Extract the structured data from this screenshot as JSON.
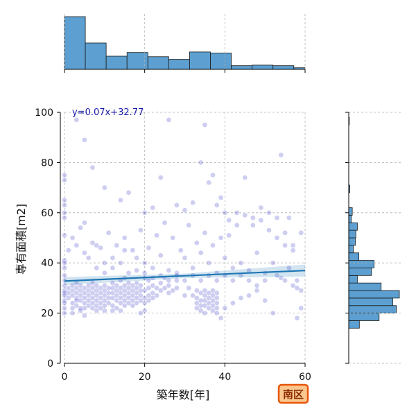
{
  "chart_data": {
    "type": "scatter",
    "xlabel": "築年数[年]",
    "ylabel": "専有面積[m2]",
    "xlim": [
      0,
      60
    ],
    "ylim": [
      0,
      100
    ],
    "x_ticks": [
      0,
      20,
      40,
      60
    ],
    "y_ticks": [
      0,
      20,
      40,
      60,
      80,
      100
    ],
    "grid": true,
    "regression": {
      "label": "y=0.07x+32.77",
      "slope": 0.07,
      "intercept": 32.77
    },
    "badge": "南区",
    "marginal_x_hist": {
      "bins": [
        0,
        5.2,
        10.4,
        15.6,
        20.8,
        26,
        31.2,
        36.4,
        41.6,
        46.8,
        52,
        57.2,
        60
      ],
      "heights": [
        1.0,
        0.5,
        0.25,
        0.32,
        0.24,
        0.19,
        0.33,
        0.31,
        0.07,
        0.08,
        0.07,
        0.03
      ]
    },
    "marginal_y_hist": {
      "bins": [
        14,
        17,
        20,
        23,
        26,
        29,
        32,
        35,
        38,
        41,
        44,
        47,
        50,
        53,
        56,
        59,
        62,
        65,
        68,
        71,
        74,
        77,
        80,
        83,
        86,
        89,
        92,
        95,
        98
      ],
      "widths": [
        0.21,
        0.6,
        0.94,
        0.87,
        1.0,
        0.64,
        0.17,
        0.45,
        0.5,
        0.2,
        0.09,
        0.13,
        0.14,
        0.17,
        0.05,
        0.07,
        0,
        0,
        0.02,
        0,
        0,
        0,
        0,
        0,
        0,
        0,
        0,
        0.01
      ]
    },
    "series": [
      {
        "name": "",
        "color": "#2020c0",
        "points": [
          [
            0,
            75
          ],
          [
            0,
            73
          ],
          [
            0,
            65
          ],
          [
            0,
            63
          ],
          [
            0,
            60
          ],
          [
            0,
            58
          ],
          [
            0,
            51
          ],
          [
            0,
            41
          ],
          [
            0,
            40
          ],
          [
            0,
            38
          ],
          [
            0,
            35
          ],
          [
            0,
            33
          ],
          [
            0,
            31
          ],
          [
            0,
            29
          ],
          [
            0,
            28
          ],
          [
            0,
            27
          ],
          [
            0,
            25
          ],
          [
            0,
            24
          ],
          [
            0,
            22
          ],
          [
            0,
            20
          ],
          [
            1,
            30
          ],
          [
            1,
            28
          ],
          [
            1,
            26
          ],
          [
            2,
            31
          ],
          [
            2,
            29
          ],
          [
            2,
            27
          ],
          [
            2,
            24
          ],
          [
            2,
            22
          ],
          [
            2,
            20
          ],
          [
            3,
            32
          ],
          [
            3,
            30
          ],
          [
            3,
            28
          ],
          [
            3,
            26
          ],
          [
            3,
            25
          ],
          [
            3,
            23
          ],
          [
            4,
            31
          ],
          [
            4,
            29
          ],
          [
            4,
            27
          ],
          [
            4,
            25
          ],
          [
            4,
            22
          ],
          [
            4,
            21
          ],
          [
            5,
            30
          ],
          [
            5,
            28
          ],
          [
            5,
            26
          ],
          [
            5,
            24
          ],
          [
            5,
            22
          ],
          [
            5,
            19
          ],
          [
            6,
            31
          ],
          [
            6,
            29
          ],
          [
            6,
            27
          ],
          [
            6,
            25
          ],
          [
            6,
            23
          ],
          [
            7,
            32
          ],
          [
            7,
            30
          ],
          [
            7,
            28
          ],
          [
            7,
            26
          ],
          [
            7,
            24
          ],
          [
            7,
            22
          ],
          [
            8,
            31
          ],
          [
            8,
            29
          ],
          [
            8,
            27
          ],
          [
            8,
            25
          ],
          [
            8,
            23
          ],
          [
            8,
            21
          ],
          [
            9,
            30
          ],
          [
            9,
            28
          ],
          [
            9,
            26
          ],
          [
            9,
            24
          ],
          [
            9,
            22
          ],
          [
            10,
            31
          ],
          [
            10,
            29
          ],
          [
            10,
            27
          ],
          [
            10,
            25
          ],
          [
            10,
            23
          ],
          [
            10,
            21
          ],
          [
            11,
            30
          ],
          [
            11,
            28
          ],
          [
            11,
            26
          ],
          [
            11,
            24
          ],
          [
            12,
            32
          ],
          [
            12,
            30
          ],
          [
            12,
            28
          ],
          [
            12,
            26
          ],
          [
            12,
            23
          ],
          [
            12,
            21
          ],
          [
            13,
            31
          ],
          [
            13,
            29
          ],
          [
            13,
            27
          ],
          [
            13,
            25
          ],
          [
            13,
            22
          ],
          [
            14,
            33
          ],
          [
            14,
            30
          ],
          [
            14,
            28
          ],
          [
            14,
            26
          ],
          [
            14,
            24
          ],
          [
            14,
            21
          ],
          [
            15,
            34
          ],
          [
            15,
            31
          ],
          [
            15,
            29
          ],
          [
            15,
            27
          ],
          [
            15,
            25
          ],
          [
            15,
            23
          ],
          [
            16,
            32
          ],
          [
            16,
            30
          ],
          [
            16,
            28
          ],
          [
            16,
            26
          ],
          [
            16,
            24
          ],
          [
            17,
            31
          ],
          [
            17,
            29
          ],
          [
            17,
            27
          ],
          [
            17,
            25
          ],
          [
            17,
            23
          ],
          [
            18,
            32
          ],
          [
            18,
            30
          ],
          [
            18,
            28
          ],
          [
            18,
            26
          ],
          [
            18,
            24
          ],
          [
            19,
            31
          ],
          [
            19,
            29
          ],
          [
            19,
            27
          ],
          [
            19,
            25
          ],
          [
            19,
            20
          ],
          [
            20,
            34
          ],
          [
            20,
            29
          ],
          [
            20,
            26
          ],
          [
            20,
            24
          ],
          [
            20,
            21
          ],
          [
            21,
            33
          ],
          [
            21,
            30
          ],
          [
            21,
            27
          ],
          [
            21,
            25
          ],
          [
            22,
            31
          ],
          [
            22,
            28
          ],
          [
            22,
            26
          ],
          [
            23,
            30
          ],
          [
            23,
            27
          ],
          [
            24,
            32
          ],
          [
            24,
            29
          ],
          [
            25,
            34
          ],
          [
            25,
            30
          ],
          [
            26,
            31
          ],
          [
            26,
            28
          ],
          [
            27,
            29
          ],
          [
            28,
            33
          ],
          [
            28,
            30
          ],
          [
            30,
            27
          ],
          [
            31,
            30
          ],
          [
            32,
            27
          ],
          [
            33,
            29
          ],
          [
            33,
            26
          ],
          [
            33,
            24
          ],
          [
            33,
            22
          ],
          [
            34,
            28
          ],
          [
            34,
            25
          ],
          [
            34,
            23
          ],
          [
            34,
            21
          ],
          [
            35,
            29
          ],
          [
            35,
            27
          ],
          [
            35,
            25
          ],
          [
            35,
            23
          ],
          [
            35,
            20
          ],
          [
            36,
            28
          ],
          [
            36,
            26
          ],
          [
            36,
            24
          ],
          [
            36,
            22
          ],
          [
            37,
            29
          ],
          [
            37,
            27
          ],
          [
            37,
            25
          ],
          [
            37,
            23
          ],
          [
            37,
            21
          ],
          [
            38,
            28
          ],
          [
            38,
            26
          ],
          [
            38,
            24
          ],
          [
            38,
            22
          ],
          [
            38,
            20
          ],
          [
            5,
            56
          ],
          [
            8,
            47
          ],
          [
            10,
            40
          ],
          [
            12,
            42
          ],
          [
            15,
            45
          ],
          [
            18,
            37
          ],
          [
            20,
            40
          ],
          [
            22,
            38
          ],
          [
            24,
            43
          ],
          [
            26,
            37
          ],
          [
            28,
            36
          ],
          [
            30,
            42
          ],
          [
            32,
            38
          ],
          [
            34,
            44
          ],
          [
            36,
            40
          ],
          [
            38,
            36
          ],
          [
            40,
            42
          ],
          [
            42,
            38
          ],
          [
            44,
            40
          ],
          [
            46,
            37
          ],
          [
            48,
            44
          ],
          [
            50,
            36
          ],
          [
            52,
            40
          ],
          [
            54,
            34
          ],
          [
            56,
            38
          ],
          [
            58,
            30
          ],
          [
            24,
            35
          ],
          [
            26,
            33
          ],
          [
            28,
            35
          ],
          [
            30,
            33
          ],
          [
            32,
            35
          ],
          [
            34,
            33
          ],
          [
            36,
            35
          ],
          [
            38,
            33
          ],
          [
            40,
            35
          ],
          [
            42,
            33
          ],
          [
            44,
            35
          ],
          [
            46,
            33
          ],
          [
            48,
            31
          ],
          [
            50,
            33
          ],
          [
            53,
            35
          ],
          [
            55,
            33
          ],
          [
            57,
            31
          ],
          [
            59,
            29
          ],
          [
            45,
            74
          ],
          [
            47,
            58
          ],
          [
            49,
            62
          ],
          [
            51,
            60
          ],
          [
            53,
            58
          ],
          [
            55,
            52
          ],
          [
            57,
            47
          ],
          [
            43,
            55
          ],
          [
            41,
            51
          ],
          [
            39,
            50
          ],
          [
            37,
            47
          ],
          [
            35,
            52
          ],
          [
            33,
            48
          ],
          [
            31,
            55
          ],
          [
            29,
            45
          ],
          [
            27,
            50
          ],
          [
            25,
            56
          ],
          [
            23,
            51
          ],
          [
            21,
            46
          ],
          [
            19,
            53
          ],
          [
            17,
            45
          ],
          [
            15,
            50
          ],
          [
            13,
            47
          ],
          [
            11,
            52
          ],
          [
            9,
            46
          ],
          [
            7,
            48
          ],
          [
            5,
            44
          ],
          [
            3,
            47
          ],
          [
            1,
            45
          ],
          [
            2,
            50
          ],
          [
            4,
            54
          ],
          [
            6,
            42
          ],
          [
            8,
            38
          ],
          [
            10,
            36
          ],
          [
            12,
            38
          ],
          [
            14,
            40
          ],
          [
            16,
            36
          ],
          [
            18,
            42
          ],
          [
            20,
            36
          ],
          [
            22,
            34
          ],
          [
            3,
            97
          ],
          [
            5,
            89
          ],
          [
            7,
            78
          ],
          [
            10,
            70
          ],
          [
            14,
            65
          ],
          [
            16,
            68
          ],
          [
            20,
            60
          ],
          [
            22,
            62
          ],
          [
            24,
            74
          ],
          [
            26,
            97
          ],
          [
            28,
            63
          ],
          [
            30,
            61
          ],
          [
            32,
            64
          ],
          [
            34,
            80
          ],
          [
            35,
            95
          ],
          [
            36,
            72
          ],
          [
            37,
            75
          ],
          [
            38,
            63
          ],
          [
            39,
            66
          ],
          [
            40,
            60
          ],
          [
            41,
            57
          ],
          [
            43,
            60
          ],
          [
            45,
            59
          ],
          [
            47,
            55
          ],
          [
            49,
            57
          ],
          [
            51,
            53
          ],
          [
            53,
            50
          ],
          [
            55,
            47
          ],
          [
            57,
            45
          ],
          [
            59,
            52
          ],
          [
            54,
            83
          ],
          [
            56,
            58
          ],
          [
            58,
            33
          ],
          [
            59,
            22
          ],
          [
            58,
            18
          ],
          [
            52,
            20
          ],
          [
            50,
            25
          ],
          [
            48,
            29
          ],
          [
            46,
            27
          ],
          [
            44,
            26
          ],
          [
            42,
            24
          ],
          [
            40,
            22
          ],
          [
            39,
            18
          ]
        ]
      }
    ]
  }
}
